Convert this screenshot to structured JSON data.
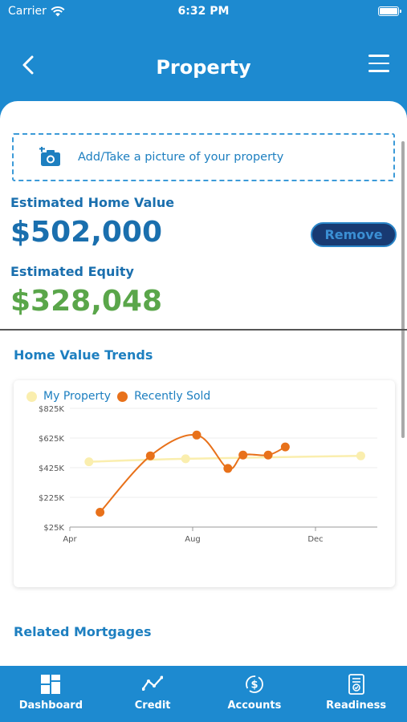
{
  "status_bar": {
    "carrier": "Carrier",
    "time": "6:32 PM"
  },
  "header": {
    "title": "Property"
  },
  "photo": {
    "label": "Add/Take a picture of your property"
  },
  "estimate": {
    "home_value_label": "Estimated Home Value",
    "home_value": "$502,000",
    "remove_label": "Remove",
    "equity_label": "Estimated Equity",
    "equity_value": "$328,048"
  },
  "trends": {
    "title": "Home Value Trends"
  },
  "related": {
    "title": "Related Mortgages"
  },
  "colors": {
    "primary": "#1d8ad0",
    "equity_green": "#5aa64a",
    "my_property": "#faeeae",
    "recently_sold": "#e8711a",
    "remove_bg": "#183a72"
  },
  "chart_data": {
    "type": "line",
    "x_ticks": [
      "Apr",
      "Aug",
      "Dec"
    ],
    "y_ticks": [
      "$825K",
      "$625K",
      "$425K",
      "$225K",
      "$25K"
    ],
    "ylim": [
      25,
      825
    ],
    "y_unit": "K",
    "grid": true,
    "legend_position": "top-left",
    "series": [
      {
        "name": "My Property",
        "color": "#faeeae",
        "points": [
          [
            "2023-04-20",
            465
          ],
          [
            "2023-07-25",
            485
          ],
          [
            "2024-01-15",
            505
          ]
        ]
      },
      {
        "name": "Recently Sold",
        "color": "#e8711a",
        "points": [
          [
            "2023-05-01",
            125
          ],
          [
            "2023-06-20",
            505
          ],
          [
            "2023-08-05",
            645
          ],
          [
            "2023-09-05",
            420
          ],
          [
            "2023-09-20",
            510
          ],
          [
            "2023-10-15",
            510
          ],
          [
            "2023-11-01",
            565
          ]
        ]
      }
    ]
  },
  "tabs": [
    {
      "label": "Dashboard",
      "icon": "dashboard-icon"
    },
    {
      "label": "Credit",
      "icon": "credit-trend-icon"
    },
    {
      "label": "Accounts",
      "icon": "accounts-dollar-icon"
    },
    {
      "label": "Readiness",
      "icon": "readiness-document-icon"
    }
  ]
}
